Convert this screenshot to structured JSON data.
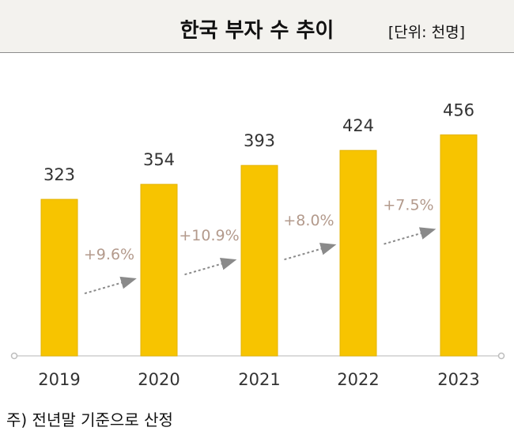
{
  "header": {
    "title": "한국 부자 수 추이",
    "unit": "[단위: 천명]"
  },
  "footnote": "주) 전년말 기준으로 산정",
  "colors": {
    "bar": "#f7c400",
    "bar_edge": "#e3b300",
    "growth_label": "#b39a8c",
    "arrow": "#8a8a8a",
    "text": "#333333"
  },
  "chart_data": {
    "type": "bar",
    "title": "한국 부자 수 추이",
    "xlabel": "",
    "ylabel": "",
    "categories": [
      "2019",
      "2020",
      "2021",
      "2022",
      "2023"
    ],
    "values": [
      323,
      354,
      393,
      424,
      456
    ],
    "ylim": [
      0,
      470
    ],
    "growth": [
      "+9.6%",
      "+10.9%",
      "+8.0%",
      "+7.5%"
    ],
    "grid": false,
    "legend": "none"
  }
}
